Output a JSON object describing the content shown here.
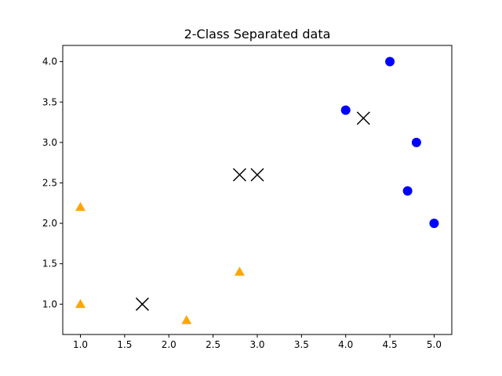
{
  "chart_data": {
    "type": "scatter",
    "title": "2-Class Separated data",
    "xlabel": "",
    "ylabel": "",
    "xlim": [
      0.8,
      5.2
    ],
    "ylim": [
      0.625,
      4.2
    ],
    "xticks": [
      "1.0",
      "1.5",
      "2.0",
      "2.5",
      "3.0",
      "3.5",
      "4.0",
      "4.5",
      "5.0"
    ],
    "yticks": [
      "1.0",
      "1.5",
      "2.0",
      "2.5",
      "3.0",
      "3.5",
      "4.0"
    ],
    "grid": false,
    "series": [
      {
        "marker": "circle",
        "color": "#0000ff",
        "points": [
          [
            4.0,
            3.4
          ],
          [
            4.5,
            4.0
          ],
          [
            4.8,
            3.0
          ],
          [
            4.7,
            2.4
          ],
          [
            5.0,
            2.0
          ]
        ]
      },
      {
        "marker": "triangle",
        "color": "#ffa500",
        "points": [
          [
            1.0,
            2.2
          ],
          [
            1.0,
            1.0
          ],
          [
            2.2,
            0.8
          ],
          [
            2.8,
            1.4
          ]
        ]
      },
      {
        "marker": "x",
        "color": "#000000",
        "points": [
          [
            1.7,
            1.0
          ],
          [
            2.8,
            2.6
          ],
          [
            3.0,
            2.6
          ],
          [
            4.2,
            3.3
          ]
        ]
      }
    ]
  }
}
